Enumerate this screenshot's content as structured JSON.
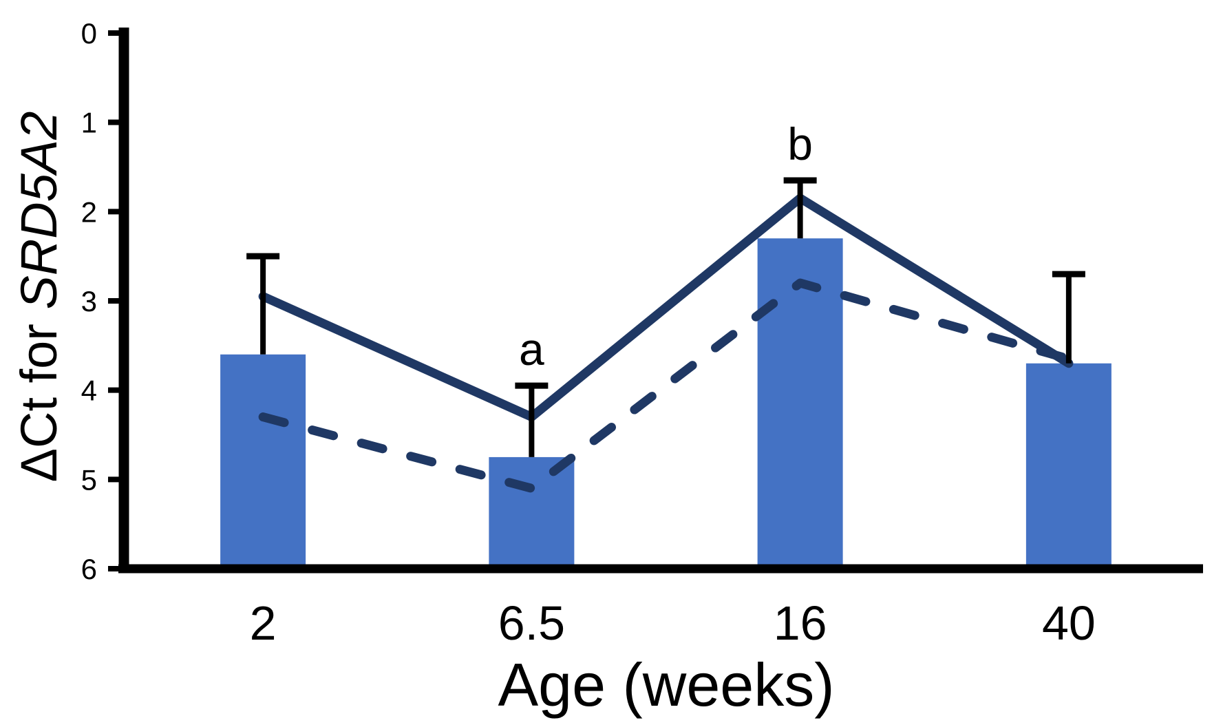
{
  "figure": {
    "ylabel_prefix": "ΔCt for ",
    "ylabel_gene": "SRD5A2",
    "xlabel": "Age (weeks)"
  },
  "chart_data": {
    "type": "bar",
    "title": "",
    "xlabel": "Age (weeks)",
    "ylabel": "ΔCt for SRD5A2",
    "categories": [
      "2",
      "6.5",
      "16",
      "40"
    ],
    "y_axis": {
      "min": 0,
      "max": 6,
      "inverted": true,
      "tick_labels": [
        "0",
        "1",
        "2",
        "3",
        "4",
        "5",
        "6"
      ],
      "grid": false
    },
    "legend": "none",
    "series": [
      {
        "name": "bars",
        "type": "bar",
        "values": [
          3.6,
          4.75,
          2.3,
          3.7
        ],
        "error_up": [
          1.1,
          0.8,
          0.65,
          1.0
        ],
        "color": "#4472C4"
      },
      {
        "name": "solid-line",
        "type": "line",
        "style": "solid",
        "values": [
          2.95,
          4.3,
          1.85,
          3.7
        ],
        "color": "#1F3864"
      },
      {
        "name": "dashed-line",
        "type": "line",
        "style": "dashed",
        "values": [
          4.3,
          5.1,
          2.8,
          3.65
        ],
        "color": "#1F3864"
      }
    ],
    "annotations": [
      {
        "label": "a",
        "category_index": 1
      },
      {
        "label": "b",
        "category_index": 2
      }
    ],
    "colors": {
      "bar": "#4472C4",
      "line": "#1F3864",
      "axis": "#000000",
      "error_bar": "#000000"
    }
  }
}
